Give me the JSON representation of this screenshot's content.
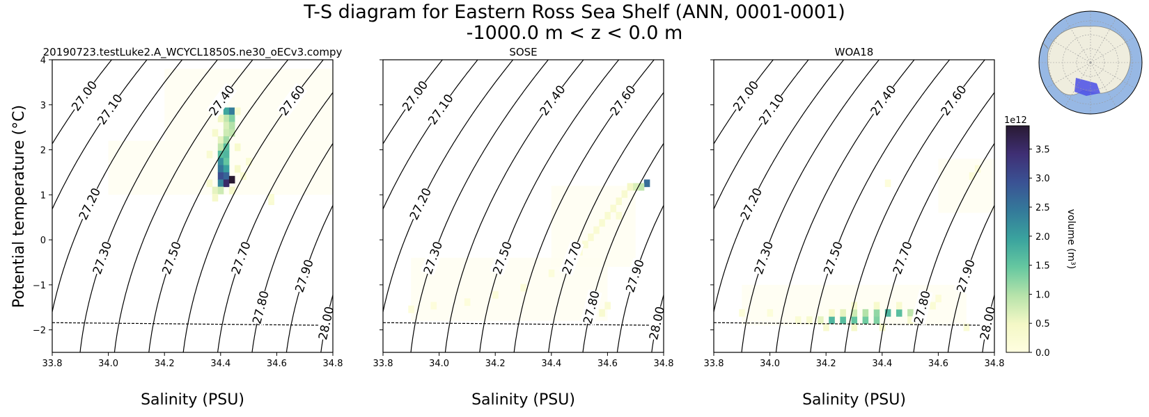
{
  "figure": {
    "title_line1": "T-S diagram for Eastern Ross Sea Shelf (ANN, 0001-0001)",
    "title_line2": "-1000.0 m < z < 0.0 m"
  },
  "chart_data": {
    "type": "heatmap",
    "xlabel": "Salinity (PSU)",
    "ylabel": "Potential temperature ($^\\circ$C)",
    "ylabel_display": "Potential temperature (°C)",
    "xlim": [
      33.8,
      34.8
    ],
    "ylim": [
      -2.5,
      4
    ],
    "xticks": [
      "33.8",
      "34.0",
      "34.2",
      "34.4",
      "34.6",
      "34.8"
    ],
    "yticks": [
      "−2",
      "−1",
      "0",
      "1",
      "2",
      "3",
      "4"
    ],
    "ytick_values": [
      -2,
      -1,
      0,
      1,
      2,
      3,
      4
    ],
    "xtick_values": [
      33.8,
      34.0,
      34.2,
      34.4,
      34.6,
      34.8
    ],
    "density_contours": [
      27.0,
      27.1,
      27.2,
      27.3,
      27.4,
      27.5,
      27.6,
      27.7,
      27.8,
      27.9,
      28.0
    ],
    "density_labels": [
      "27.00",
      "27.10",
      "27.20",
      "27.30",
      "27.40",
      "27.50",
      "27.60",
      "27.70",
      "27.80",
      "27.90",
      "28.00"
    ],
    "freezing_line": {
      "style": "dashed",
      "salinity": [
        33.8,
        34.8
      ],
      "temperature": [
        -1.84,
        -1.9
      ]
    },
    "colorbar": {
      "label": "volume (m³)",
      "scale_label": "1e12",
      "range": [
        0.0,
        3.9
      ],
      "ticks": [
        "0.0",
        "0.5",
        "1.0",
        "1.5",
        "2.0",
        "2.5",
        "3.0",
        "3.5"
      ],
      "tick_values": [
        0.0,
        0.5,
        1.0,
        1.5,
        2.0,
        2.5,
        3.0,
        3.5
      ],
      "colormap_stops": [
        "#fffee0",
        "#f4f8c6",
        "#b7e3aa",
        "#66c8a0",
        "#3aa39e",
        "#347a9a",
        "#3a5294",
        "#3f2f74",
        "#291a33"
      ]
    },
    "panels": [
      {
        "title": "20190723.testLuke2.A_WCYCL1850S.ne30_oECv3.compy",
        "cells": [
          {
            "s": 34.42,
            "t": 2.86,
            "v": 1.9
          },
          {
            "s": 34.44,
            "t": 2.86,
            "v": 2.4
          },
          {
            "s": 34.42,
            "t": 2.7,
            "v": 0.9
          },
          {
            "s": 34.44,
            "t": 2.7,
            "v": 1.3
          },
          {
            "s": 34.42,
            "t": 2.54,
            "v": 0.7
          },
          {
            "s": 34.44,
            "t": 2.54,
            "v": 1.0
          },
          {
            "s": 34.42,
            "t": 2.38,
            "v": 0.8
          },
          {
            "s": 34.44,
            "t": 2.38,
            "v": 0.9
          },
          {
            "s": 34.4,
            "t": 2.22,
            "v": 0.6
          },
          {
            "s": 34.42,
            "t": 2.22,
            "v": 1.1
          },
          {
            "s": 34.4,
            "t": 2.06,
            "v": 0.9
          },
          {
            "s": 34.42,
            "t": 2.06,
            "v": 1.6
          },
          {
            "s": 34.4,
            "t": 1.9,
            "v": 1.6
          },
          {
            "s": 34.42,
            "t": 1.9,
            "v": 1.7
          },
          {
            "s": 34.4,
            "t": 1.74,
            "v": 2.2
          },
          {
            "s": 34.42,
            "t": 1.74,
            "v": 1.5
          },
          {
            "s": 34.4,
            "t": 1.58,
            "v": 2.5
          },
          {
            "s": 34.42,
            "t": 1.58,
            "v": 2.0
          },
          {
            "s": 34.4,
            "t": 1.42,
            "v": 3.0
          },
          {
            "s": 34.42,
            "t": 1.42,
            "v": 2.7
          },
          {
            "s": 34.4,
            "t": 1.26,
            "v": 2.3
          },
          {
            "s": 34.42,
            "t": 1.26,
            "v": 3.5
          },
          {
            "s": 34.44,
            "t": 1.34,
            "v": 3.9
          },
          {
            "s": 34.38,
            "t": 1.1,
            "v": 0.6
          },
          {
            "s": 34.4,
            "t": 1.1,
            "v": 0.8
          },
          {
            "s": 34.38,
            "t": 0.94,
            "v": 0.4
          },
          {
            "s": 34.4,
            "t": 2.7,
            "v": 0.5
          },
          {
            "s": 34.38,
            "t": 2.38,
            "v": 0.35
          },
          {
            "s": 34.46,
            "t": 2.06,
            "v": 0.35
          },
          {
            "s": 34.46,
            "t": 1.58,
            "v": 0.4
          },
          {
            "s": 34.44,
            "t": 1.1,
            "v": 0.4
          },
          {
            "s": 34.36,
            "t": 1.9,
            "v": 0.25
          },
          {
            "s": 34.48,
            "t": 1.42,
            "v": 0.25
          },
          {
            "s": 34.5,
            "t": 1.74,
            "v": 0.2
          },
          {
            "s": 34.46,
            "t": 2.86,
            "v": 0.3
          },
          {
            "s": 34.58,
            "t": 0.86,
            "v": 0.25
          },
          {
            "s": 34.58,
            "t": 0.94,
            "v": 0.2
          },
          {
            "s": 34.36,
            "t": 1.26,
            "v": 0.3
          }
        ]
      },
      {
        "title": "SOSE",
        "cells": [
          {
            "s": 34.74,
            "t": 1.26,
            "v": 2.6
          },
          {
            "s": 34.72,
            "t": 1.18,
            "v": 0.9
          },
          {
            "s": 34.7,
            "t": 1.18,
            "v": 0.7
          },
          {
            "s": 34.68,
            "t": 1.18,
            "v": 0.45
          },
          {
            "s": 34.66,
            "t": 1.02,
            "v": 0.3
          },
          {
            "s": 34.64,
            "t": 0.86,
            "v": 0.3
          },
          {
            "s": 34.62,
            "t": 0.7,
            "v": 0.28
          },
          {
            "s": 34.6,
            "t": 0.54,
            "v": 0.28
          },
          {
            "s": 34.58,
            "t": 0.38,
            "v": 0.26
          },
          {
            "s": 34.56,
            "t": 0.22,
            "v": 0.24
          },
          {
            "s": 34.54,
            "t": 0.06,
            "v": 0.22
          },
          {
            "s": 34.52,
            "t": -0.1,
            "v": 0.2
          },
          {
            "s": 34.5,
            "t": -0.26,
            "v": 0.18
          },
          {
            "s": 34.56,
            "t": -1.3,
            "v": 0.25
          },
          {
            "s": 34.58,
            "t": -1.62,
            "v": 0.3
          },
          {
            "s": 34.6,
            "t": -1.46,
            "v": 0.22
          },
          {
            "s": 34.48,
            "t": -0.42,
            "v": 0.15
          },
          {
            "s": 34.4,
            "t": -0.74,
            "v": 0.12
          },
          {
            "s": 34.3,
            "t": -1.06,
            "v": 0.12
          },
          {
            "s": 34.2,
            "t": -1.22,
            "v": 0.12
          },
          {
            "s": 34.1,
            "t": -1.38,
            "v": 0.1
          },
          {
            "s": 33.98,
            "t": -1.46,
            "v": 0.1
          },
          {
            "s": 33.9,
            "t": -1.54,
            "v": 0.1
          },
          {
            "s": 34.64,
            "t": 0.54,
            "v": 0.2
          }
        ]
      },
      {
        "title": "WOA18",
        "cells": [
          {
            "s": 34.22,
            "t": -1.78,
            "v": 1.7
          },
          {
            "s": 34.26,
            "t": -1.78,
            "v": 1.6
          },
          {
            "s": 34.3,
            "t": -1.78,
            "v": 1.5
          },
          {
            "s": 34.34,
            "t": -1.78,
            "v": 1.4
          },
          {
            "s": 34.38,
            "t": -1.78,
            "v": 1.3
          },
          {
            "s": 34.42,
            "t": -1.62,
            "v": 1.7
          },
          {
            "s": 34.46,
            "t": -1.62,
            "v": 1.6
          },
          {
            "s": 34.38,
            "t": -1.62,
            "v": 1.2
          },
          {
            "s": 34.34,
            "t": -1.62,
            "v": 1.0
          },
          {
            "s": 34.3,
            "t": -1.62,
            "v": 0.8
          },
          {
            "s": 34.5,
            "t": -1.62,
            "v": 0.9
          },
          {
            "s": 34.26,
            "t": -1.62,
            "v": 0.6
          },
          {
            "s": 34.22,
            "t": -1.62,
            "v": 0.4
          },
          {
            "s": 34.18,
            "t": -1.78,
            "v": 0.6
          },
          {
            "s": 34.14,
            "t": -1.78,
            "v": 0.3
          },
          {
            "s": 34.1,
            "t": -1.78,
            "v": 0.2
          },
          {
            "s": 34.3,
            "t": -1.46,
            "v": 0.35
          },
          {
            "s": 34.38,
            "t": -1.46,
            "v": 0.35
          },
          {
            "s": 34.46,
            "t": -1.46,
            "v": 0.3
          },
          {
            "s": 34.5,
            "t": -1.78,
            "v": 0.3
          },
          {
            "s": 34.3,
            "t": -1.94,
            "v": 0.4
          },
          {
            "s": 34.4,
            "t": -1.94,
            "v": 0.35
          },
          {
            "s": 34.2,
            "t": -1.94,
            "v": 0.3
          },
          {
            "s": 34.58,
            "t": -1.46,
            "v": 0.2
          },
          {
            "s": 34.7,
            "t": -1.94,
            "v": 0.2
          },
          {
            "s": 33.9,
            "t": -1.62,
            "v": 0.12
          },
          {
            "s": 34.0,
            "t": -1.62,
            "v": 0.12
          },
          {
            "s": 34.72,
            "t": 1.42,
            "v": 0.15
          },
          {
            "s": 34.74,
            "t": 1.58,
            "v": 0.15
          },
          {
            "s": 34.42,
            "t": 1.26,
            "v": 0.1
          },
          {
            "s": 34.6,
            "t": -1.3,
            "v": 0.15
          }
        ]
      }
    ]
  },
  "inset_map": {
    "region_color": "#4a4ee8",
    "ocean_color": "#97b8e4",
    "land_color": "#efedde"
  }
}
